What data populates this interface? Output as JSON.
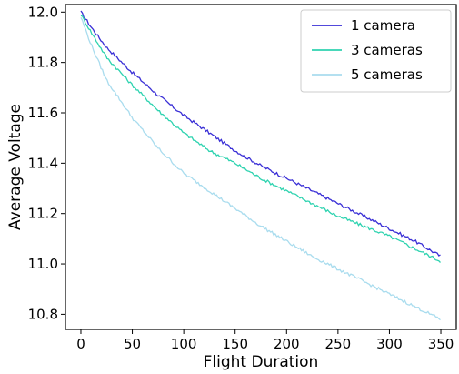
{
  "chart_data": {
    "type": "line",
    "xlabel": "Flight Duration",
    "ylabel": "Average Voltage",
    "xlim": [
      -15,
      365
    ],
    "ylim": [
      10.74,
      12.03
    ],
    "xticks": [
      0,
      50,
      100,
      150,
      200,
      250,
      300,
      350
    ],
    "yticks": [
      10.8,
      11.0,
      11.2,
      11.4,
      11.6,
      11.8,
      12.0
    ],
    "xtick_labels": [
      "0",
      "50",
      "100",
      "150",
      "200",
      "250",
      "300",
      "350"
    ],
    "ytick_labels": [
      "10.8",
      "11.0",
      "11.2",
      "11.4",
      "11.6",
      "11.8",
      "12.0"
    ],
    "grid": false,
    "legend_position": "top-right",
    "x": [
      0,
      10,
      25,
      50,
      75,
      100,
      125,
      150,
      175,
      200,
      225,
      250,
      275,
      300,
      325,
      350
    ],
    "series": [
      {
        "name": "1 camera",
        "color": "#3a2fd6",
        "values": [
          12.0,
          11.94,
          11.86,
          11.76,
          11.67,
          11.59,
          11.52,
          11.45,
          11.39,
          11.34,
          11.29,
          11.24,
          11.19,
          11.14,
          11.09,
          11.03
        ]
      },
      {
        "name": "3 cameras",
        "color": "#2fd3b0",
        "values": [
          11.99,
          11.92,
          11.82,
          11.71,
          11.61,
          11.52,
          11.45,
          11.4,
          11.34,
          11.29,
          11.24,
          11.19,
          11.15,
          11.11,
          11.06,
          11.01
        ]
      },
      {
        "name": "5 cameras",
        "color": "#a9dcee",
        "values": [
          11.98,
          11.87,
          11.73,
          11.58,
          11.46,
          11.36,
          11.29,
          11.22,
          11.15,
          11.09,
          11.03,
          10.98,
          10.93,
          10.88,
          10.83,
          10.78
        ]
      }
    ]
  }
}
